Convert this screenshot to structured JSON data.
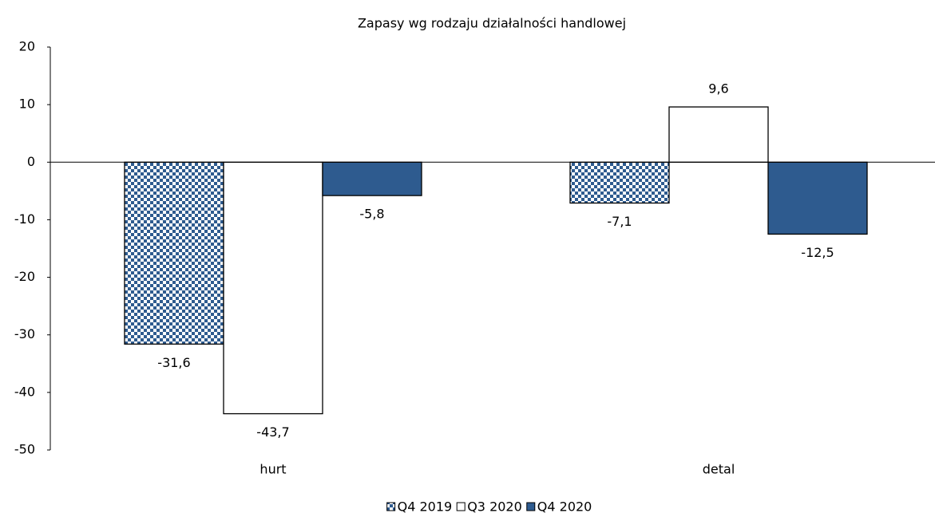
{
  "chart_data": {
    "type": "bar",
    "title": "Zapasy wg rodzaju działalności handlowej",
    "categories": [
      "hurt",
      "detal"
    ],
    "series": [
      {
        "name": "Q4 2019",
        "color": "#2e5b8f",
        "pattern": "checker",
        "values": [
          -31.6,
          -7.1
        ],
        "value_labels": [
          "-31,6",
          "-7,1"
        ]
      },
      {
        "name": "Q3 2020",
        "color": "#ffffff",
        "values": [
          -43.7,
          9.6
        ],
        "value_labels": [
          "-43,7",
          "9,6"
        ]
      },
      {
        "name": "Q4 2020",
        "color": "#2e5b8f",
        "values": [
          -5.8,
          -12.5
        ],
        "value_labels": [
          "-5,8",
          "-12,5"
        ]
      }
    ],
    "ylim": [
      -50,
      20
    ],
    "yticks": [
      -50,
      -40,
      -30,
      -20,
      -10,
      0,
      10,
      20
    ],
    "legend": "bottom"
  }
}
